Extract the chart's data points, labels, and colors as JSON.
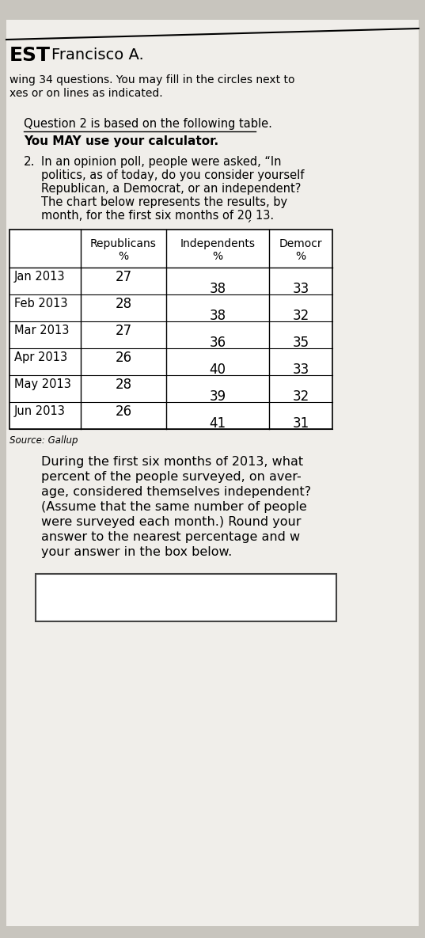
{
  "background_color": "#c8c5be",
  "page_bg": "#f0eeea",
  "header_text": "EST",
  "handwritten_name": "Francisco A.",
  "line1": "wing 34 questions. You may fill in the circles next to",
  "line2": "xes or on lines as indicated.",
  "q2_intro1": "Question 2 is based on the following table.",
  "q2_intro2": "You MAY use your calculator.",
  "q2_number": "2.",
  "q2_text_lines": [
    "In an opinion poll, people were asked, “In",
    "politics, as of today, do you consider yourself",
    "Republican, a Democrat, or an independent?",
    "The chart below represents the results, by",
    "month, for the first six months of 20̗ 13."
  ],
  "table_col_labels": [
    "Republicans\n%",
    "Independents\n%",
    "Democr\n%"
  ],
  "table_months": [
    "Jan 2013",
    "Feb 2013",
    "Mar 2013",
    "Apr 2013",
    "May 2013",
    "Jun 2013"
  ],
  "republicans": [
    27,
    28,
    27,
    26,
    28,
    26
  ],
  "independents": [
    38,
    38,
    36,
    40,
    39,
    41
  ],
  "democrats": [
    33,
    32,
    35,
    33,
    32,
    31
  ],
  "source_text": "Source: Gallup",
  "question_body_lines": [
    "During the first six months of 2013, what",
    "percent of the people surveyed, on aver-",
    "age, considered themselves independent?",
    "(Assume that the same number of people",
    "were surveyed each month.) Round your",
    "answer to the nearest percentage and w",
    "your answer in the box below."
  ]
}
